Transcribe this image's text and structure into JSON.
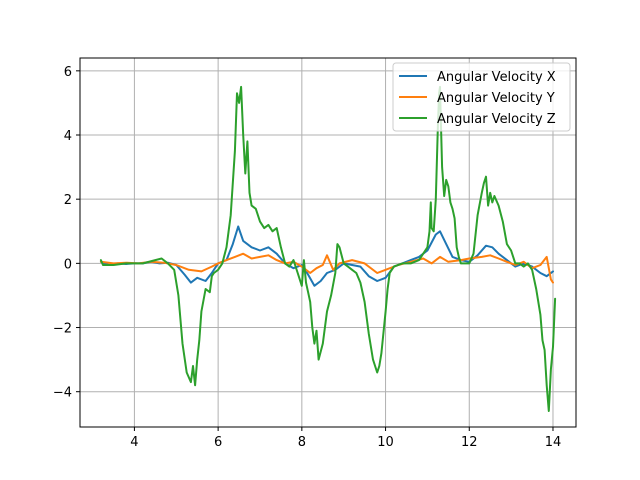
{
  "chart_data": {
    "type": "line",
    "title": "",
    "xlabel": "",
    "ylabel": "",
    "xlim": [
      2.7,
      14.55
    ],
    "ylim": [
      -5.1,
      6.4
    ],
    "xticks": [
      4,
      6,
      8,
      10,
      12,
      14
    ],
    "yticks": [
      -4,
      -2,
      0,
      2,
      4,
      6
    ],
    "grid": true,
    "legend_position": "top-right",
    "series": [
      {
        "name": "Angular Velocity X",
        "color": "#1f77b4",
        "points": [
          [
            3.2,
            0.05
          ],
          [
            3.4,
            -0.05
          ],
          [
            3.6,
            0.0
          ],
          [
            3.8,
            -0.02
          ],
          [
            4.0,
            0.0
          ],
          [
            4.2,
            0.0
          ],
          [
            4.4,
            0.05
          ],
          [
            4.6,
            0.0
          ],
          [
            4.8,
            0.02
          ],
          [
            5.0,
            -0.05
          ],
          [
            5.2,
            -0.35
          ],
          [
            5.35,
            -0.6
          ],
          [
            5.5,
            -0.45
          ],
          [
            5.7,
            -0.55
          ],
          [
            5.85,
            -0.3
          ],
          [
            6.0,
            0.0
          ],
          [
            6.2,
            0.1
          ],
          [
            6.35,
            0.6
          ],
          [
            6.48,
            1.15
          ],
          [
            6.6,
            0.7
          ],
          [
            6.8,
            0.5
          ],
          [
            7.0,
            0.4
          ],
          [
            7.2,
            0.5
          ],
          [
            7.4,
            0.3
          ],
          [
            7.6,
            0.0
          ],
          [
            7.8,
            -0.15
          ],
          [
            8.0,
            -0.05
          ],
          [
            8.15,
            -0.35
          ],
          [
            8.3,
            -0.7
          ],
          [
            8.45,
            -0.55
          ],
          [
            8.6,
            -0.3
          ],
          [
            8.8,
            -0.2
          ],
          [
            9.0,
            0.0
          ],
          [
            9.2,
            -0.05
          ],
          [
            9.4,
            -0.1
          ],
          [
            9.6,
            -0.4
          ],
          [
            9.8,
            -0.55
          ],
          [
            10.0,
            -0.45
          ],
          [
            10.2,
            -0.1
          ],
          [
            10.4,
            0.0
          ],
          [
            10.6,
            0.1
          ],
          [
            10.8,
            0.2
          ],
          [
            11.0,
            0.4
          ],
          [
            11.2,
            0.9
          ],
          [
            11.3,
            1.0
          ],
          [
            11.45,
            0.6
          ],
          [
            11.6,
            0.2
          ],
          [
            11.8,
            0.1
          ],
          [
            12.0,
            0.05
          ],
          [
            12.2,
            0.25
          ],
          [
            12.4,
            0.55
          ],
          [
            12.55,
            0.5
          ],
          [
            12.7,
            0.3
          ],
          [
            12.9,
            0.1
          ],
          [
            13.1,
            -0.1
          ],
          [
            13.3,
            0.0
          ],
          [
            13.5,
            -0.1
          ],
          [
            13.7,
            -0.3
          ],
          [
            13.85,
            -0.4
          ],
          [
            14.0,
            -0.25
          ]
        ]
      },
      {
        "name": "Angular Velocity Y",
        "color": "#ff7f0e",
        "points": [
          [
            3.2,
            0.05
          ],
          [
            3.5,
            0.0
          ],
          [
            3.8,
            0.02
          ],
          [
            4.1,
            0.0
          ],
          [
            4.4,
            0.05
          ],
          [
            4.7,
            0.02
          ],
          [
            5.0,
            -0.05
          ],
          [
            5.3,
            -0.2
          ],
          [
            5.6,
            -0.25
          ],
          [
            5.85,
            -0.1
          ],
          [
            6.0,
            0.0
          ],
          [
            6.2,
            0.1
          ],
          [
            6.4,
            0.2
          ],
          [
            6.6,
            0.3
          ],
          [
            6.8,
            0.15
          ],
          [
            7.0,
            0.2
          ],
          [
            7.2,
            0.25
          ],
          [
            7.4,
            0.1
          ],
          [
            7.6,
            0.0
          ],
          [
            7.8,
            0.05
          ],
          [
            8.0,
            -0.1
          ],
          [
            8.2,
            -0.3
          ],
          [
            8.35,
            -0.15
          ],
          [
            8.5,
            -0.05
          ],
          [
            8.6,
            0.25
          ],
          [
            8.75,
            -0.2
          ],
          [
            8.9,
            0.0
          ],
          [
            9.2,
            0.1
          ],
          [
            9.5,
            0.0
          ],
          [
            9.8,
            -0.3
          ],
          [
            10.0,
            -0.2
          ],
          [
            10.3,
            -0.05
          ],
          [
            10.6,
            0.05
          ],
          [
            10.9,
            0.15
          ],
          [
            11.1,
            0.0
          ],
          [
            11.3,
            0.2
          ],
          [
            11.5,
            0.05
          ],
          [
            11.8,
            0.1
          ],
          [
            12.0,
            0.15
          ],
          [
            12.3,
            0.2
          ],
          [
            12.5,
            0.25
          ],
          [
            12.7,
            0.15
          ],
          [
            12.9,
            0.05
          ],
          [
            13.1,
            -0.05
          ],
          [
            13.3,
            0.05
          ],
          [
            13.5,
            -0.15
          ],
          [
            13.7,
            -0.05
          ],
          [
            13.85,
            0.2
          ],
          [
            13.95,
            -0.5
          ],
          [
            14.0,
            -0.6
          ]
        ]
      },
      {
        "name": "Angular Velocity Z",
        "color": "#2ca02c",
        "points": [
          [
            3.2,
            0.1
          ],
          [
            3.25,
            -0.05
          ],
          [
            3.5,
            -0.05
          ],
          [
            3.8,
            0.0
          ],
          [
            4.0,
            0.0
          ],
          [
            4.2,
            0.0
          ],
          [
            4.5,
            0.1
          ],
          [
            4.65,
            0.15
          ],
          [
            4.8,
            0.0
          ],
          [
            4.95,
            -0.2
          ],
          [
            5.05,
            -1.0
          ],
          [
            5.15,
            -2.5
          ],
          [
            5.25,
            -3.4
          ],
          [
            5.35,
            -3.7
          ],
          [
            5.4,
            -3.2
          ],
          [
            5.45,
            -3.8
          ],
          [
            5.5,
            -3.0
          ],
          [
            5.55,
            -2.4
          ],
          [
            5.6,
            -1.5
          ],
          [
            5.7,
            -0.8
          ],
          [
            5.8,
            -0.9
          ],
          [
            5.85,
            -0.4
          ],
          [
            5.9,
            -0.3
          ],
          [
            6.0,
            -0.2
          ],
          [
            6.1,
            0.0
          ],
          [
            6.2,
            0.5
          ],
          [
            6.3,
            1.5
          ],
          [
            6.4,
            3.5
          ],
          [
            6.45,
            5.3
          ],
          [
            6.5,
            5.0
          ],
          [
            6.55,
            5.5
          ],
          [
            6.6,
            4.0
          ],
          [
            6.65,
            2.8
          ],
          [
            6.7,
            3.8
          ],
          [
            6.75,
            2.2
          ],
          [
            6.8,
            1.8
          ],
          [
            6.9,
            1.7
          ],
          [
            7.0,
            1.3
          ],
          [
            7.1,
            1.1
          ],
          [
            7.2,
            1.2
          ],
          [
            7.3,
            1.0
          ],
          [
            7.4,
            1.1
          ],
          [
            7.5,
            0.5
          ],
          [
            7.6,
            0.0
          ],
          [
            7.7,
            -0.1
          ],
          [
            7.8,
            0.1
          ],
          [
            7.9,
            -0.3
          ],
          [
            8.0,
            -0.7
          ],
          [
            8.05,
            0.1
          ],
          [
            8.1,
            -0.6
          ],
          [
            8.15,
            -0.9
          ],
          [
            8.2,
            -1.2
          ],
          [
            8.25,
            -2.0
          ],
          [
            8.3,
            -2.5
          ],
          [
            8.35,
            -2.1
          ],
          [
            8.4,
            -3.0
          ],
          [
            8.5,
            -2.5
          ],
          [
            8.6,
            -1.5
          ],
          [
            8.7,
            -1.0
          ],
          [
            8.8,
            -0.3
          ],
          [
            8.85,
            0.6
          ],
          [
            8.9,
            0.5
          ],
          [
            9.0,
            0.0
          ],
          [
            9.1,
            -0.1
          ],
          [
            9.2,
            -0.2
          ],
          [
            9.3,
            -0.3
          ],
          [
            9.4,
            -0.6
          ],
          [
            9.5,
            -1.2
          ],
          [
            9.6,
            -2.2
          ],
          [
            9.7,
            -3.0
          ],
          [
            9.8,
            -3.4
          ],
          [
            9.85,
            -3.2
          ],
          [
            9.9,
            -2.8
          ],
          [
            10.0,
            -1.5
          ],
          [
            10.05,
            -0.8
          ],
          [
            10.1,
            -0.3
          ],
          [
            10.2,
            -0.1
          ],
          [
            10.4,
            0.0
          ],
          [
            10.6,
            0.0
          ],
          [
            10.8,
            0.1
          ],
          [
            10.9,
            0.3
          ],
          [
            11.0,
            0.5
          ],
          [
            11.05,
            1.0
          ],
          [
            11.08,
            1.9
          ],
          [
            11.1,
            1.1
          ],
          [
            11.15,
            1.0
          ],
          [
            11.2,
            2.0
          ],
          [
            11.25,
            4.3
          ],
          [
            11.28,
            5.3
          ],
          [
            11.3,
            5.5
          ],
          [
            11.32,
            4.5
          ],
          [
            11.35,
            3.0
          ],
          [
            11.4,
            2.1
          ],
          [
            11.45,
            2.6
          ],
          [
            11.5,
            2.4
          ],
          [
            11.55,
            1.9
          ],
          [
            11.6,
            1.7
          ],
          [
            11.65,
            1.4
          ],
          [
            11.7,
            0.5
          ],
          [
            11.75,
            0.2
          ],
          [
            11.8,
            0.0
          ],
          [
            11.9,
            0.0
          ],
          [
            12.0,
            0.0
          ],
          [
            12.1,
            0.3
          ],
          [
            12.2,
            1.5
          ],
          [
            12.3,
            2.2
          ],
          [
            12.35,
            2.5
          ],
          [
            12.4,
            2.7
          ],
          [
            12.45,
            1.8
          ],
          [
            12.5,
            2.2
          ],
          [
            12.55,
            1.9
          ],
          [
            12.6,
            2.1
          ],
          [
            12.7,
            1.8
          ],
          [
            12.8,
            1.3
          ],
          [
            12.9,
            0.6
          ],
          [
            13.0,
            0.4
          ],
          [
            13.1,
            0.0
          ],
          [
            13.2,
            0.0
          ],
          [
            13.3,
            -0.1
          ],
          [
            13.4,
            0.0
          ],
          [
            13.5,
            -0.2
          ],
          [
            13.6,
            -0.8
          ],
          [
            13.7,
            -1.6
          ],
          [
            13.75,
            -2.4
          ],
          [
            13.8,
            -2.7
          ],
          [
            13.85,
            -3.8
          ],
          [
            13.9,
            -4.6
          ],
          [
            13.95,
            -3.3
          ],
          [
            14.0,
            -2.6
          ],
          [
            14.05,
            -1.1
          ]
        ]
      }
    ]
  }
}
